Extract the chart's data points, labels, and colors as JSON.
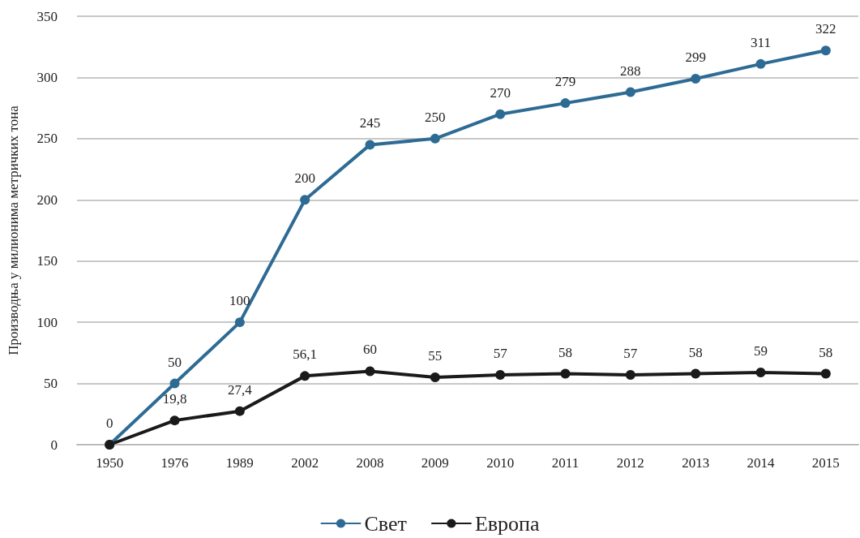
{
  "chart_data": {
    "type": "line",
    "ylabel": "Производња у милионима метричких тона",
    "categories": [
      "1950",
      "1976",
      "1989",
      "2002",
      "2008",
      "2009",
      "2010",
      "2011",
      "2012",
      "2013",
      "2014",
      "2015"
    ],
    "series": [
      {
        "name": "Свет",
        "color": "#2e6b94",
        "values": [
          0,
          50,
          100,
          200,
          245,
          250,
          270,
          279,
          288,
          299,
          311,
          322
        ],
        "value_labels": [
          "0",
          "50",
          "100",
          "200",
          "245",
          "250",
          "270",
          "279",
          "288",
          "299",
          "311",
          "322"
        ]
      },
      {
        "name": "Европа",
        "color": "#1a1a1a",
        "values": [
          0,
          19.8,
          27.4,
          56.1,
          60,
          55,
          57,
          58,
          57,
          58,
          59,
          58
        ],
        "value_labels": [
          null,
          "19,8",
          "27,4",
          "56,1",
          "60",
          "55",
          "57",
          "58",
          "57",
          "58",
          "59",
          "58"
        ]
      }
    ],
    "ylim": [
      0,
      350
    ],
    "yticks": [
      0,
      50,
      100,
      150,
      200,
      250,
      300,
      350
    ],
    "grid": "y",
    "legend": "bottom",
    "marker": "circle",
    "line_style": "solid"
  }
}
